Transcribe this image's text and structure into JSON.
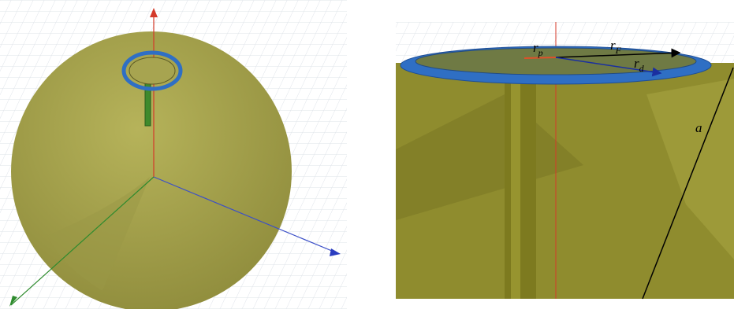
{
  "labels": {
    "r_p": {
      "symbol": "r",
      "subscript": "p"
    },
    "r_F": {
      "symbol": "r",
      "subscript": "F"
    },
    "r_d": {
      "symbol": "r",
      "subscript": "d"
    },
    "a": "a"
  }
}
